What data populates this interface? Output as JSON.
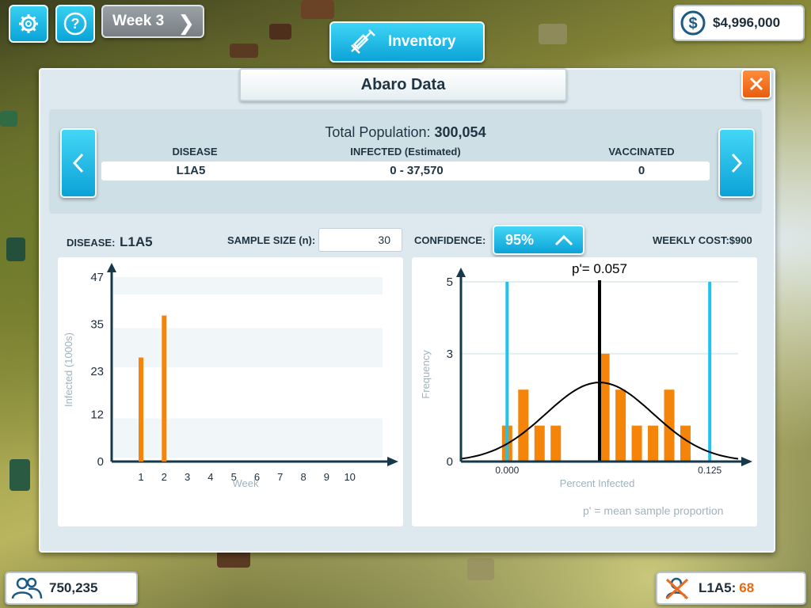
{
  "top_bar": {
    "settings_icon": "gear-icon",
    "help_icon": "question-icon",
    "week_label": "Week 3",
    "inventory_label": "Inventory",
    "money": "$4,996,000"
  },
  "dialog": {
    "title": "Abaro Data",
    "summary": {
      "total_population_label": "Total Population:",
      "total_population_value": "300,054",
      "columns": [
        "DISEASE",
        "INFECTED (Estimated)",
        "VACCINATED"
      ],
      "row": {
        "disease": "L1A5",
        "infected": "0 - 37,570",
        "vaccinated": "0"
      }
    },
    "controls": {
      "disease_label": "DISEASE:",
      "disease_value": "L1A5",
      "sample_size_label": "SAMPLE SIZE (n):",
      "sample_size_value": "30",
      "confidence_label": "CONFIDENCE:",
      "confidence_value": "95%",
      "weekly_cost": "WEEKLY COST:$900"
    },
    "footnote": "p' = mean sample proportion"
  },
  "bottom_bar": {
    "population": "750,235",
    "disease_label": "L1A5:",
    "disease_count": "68"
  },
  "colors": {
    "accent": "#12b3e4",
    "bar": "#f5840a",
    "ci_line": "#1fc3ec",
    "close": "#f06a1c"
  },
  "chart_data": [
    {
      "type": "bar",
      "title": "",
      "xlabel": "Week",
      "ylabel": "Infected (1000s)",
      "categories": [
        "1",
        "2",
        "3",
        "4",
        "5",
        "6",
        "7",
        "8",
        "9",
        "10"
      ],
      "values": [
        26.5,
        37.2,
        null,
        null,
        null,
        null,
        null,
        null,
        null,
        null
      ],
      "yticks": [
        0,
        12,
        23,
        35,
        47
      ],
      "ylim": [
        0,
        47
      ],
      "grid": "horizontal bands"
    },
    {
      "type": "bar",
      "title": "p'= 0.057",
      "xlabel": "Percent Infected",
      "ylabel": "Frequency",
      "x_tick_labels": [
        "0.000",
        "0.125"
      ],
      "yticks": [
        0,
        3,
        5
      ],
      "ylim": [
        0,
        5
      ],
      "xlim": [
        -0.0285,
        0.1425
      ],
      "bins": [
        {
          "x": 0.0,
          "value": 1
        },
        {
          "x": 0.01,
          "value": 2
        },
        {
          "x": 0.02,
          "value": 1
        },
        {
          "x": 0.03,
          "value": 1
        },
        {
          "x": 0.06,
          "value": 3
        },
        {
          "x": 0.07,
          "value": 2
        },
        {
          "x": 0.08,
          "value": 1
        },
        {
          "x": 0.09,
          "value": 1
        },
        {
          "x": 0.1,
          "value": 2
        },
        {
          "x": 0.11,
          "value": 1
        }
      ],
      "mean": 0.057,
      "ci_lower": 0.0,
      "ci_upper": 0.125,
      "curve": "normal"
    }
  ]
}
